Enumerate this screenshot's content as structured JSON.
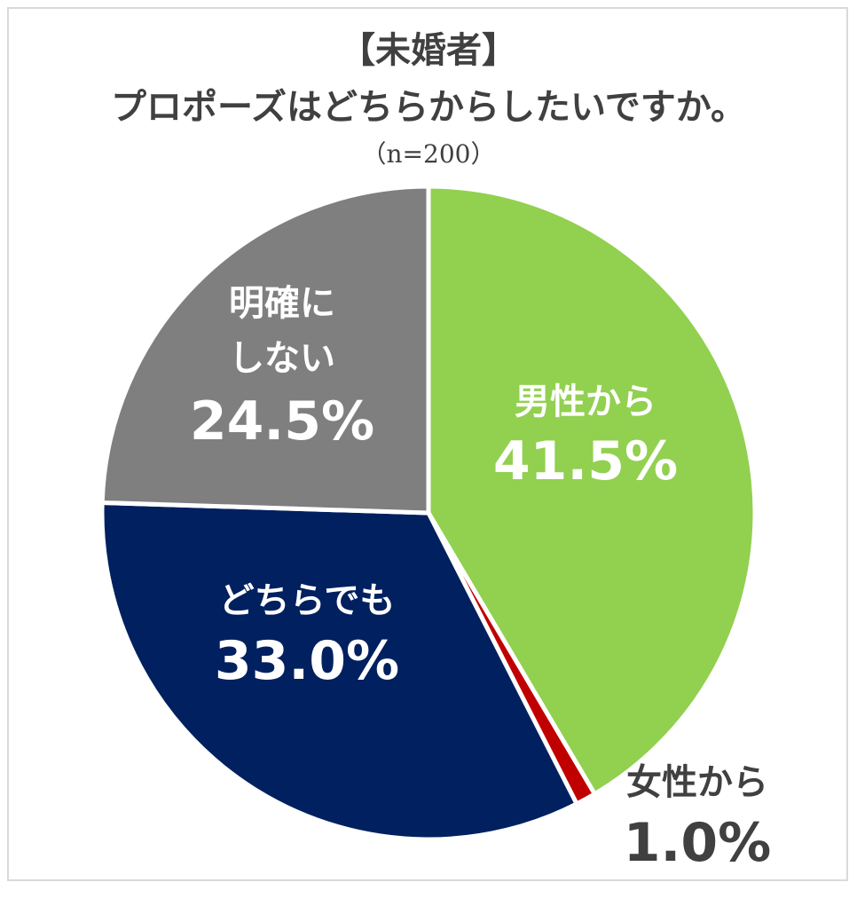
{
  "title": {
    "line1": "【未婚者】",
    "line2": "プロポーズはどちらからしたいですか。",
    "sample": "（n=200）"
  },
  "chart_data": {
    "type": "pie",
    "title": "【未婚者】プロポーズはどちらからしたいですか。",
    "subtitle": "（n=200）",
    "slices": [
      {
        "label": "男性から",
        "value": 41.5,
        "display": "41.5%",
        "color": "#92d050",
        "text_color": "#ffffff"
      },
      {
        "label": "女性から",
        "value": 1.0,
        "display": "1.0%",
        "color": "#c00000",
        "text_color": "#404040"
      },
      {
        "label": "どちらでも",
        "value": 33.0,
        "display": "33.0%",
        "color": "#002060",
        "text_color": "#ffffff"
      },
      {
        "label": "明確にしない",
        "value": 24.5,
        "display": "24.5%",
        "color": "#7f7f7f",
        "text_color": "#ffffff"
      }
    ],
    "start_angle": "12 o'clock",
    "direction": "clockwise",
    "labels_inside": true
  }
}
